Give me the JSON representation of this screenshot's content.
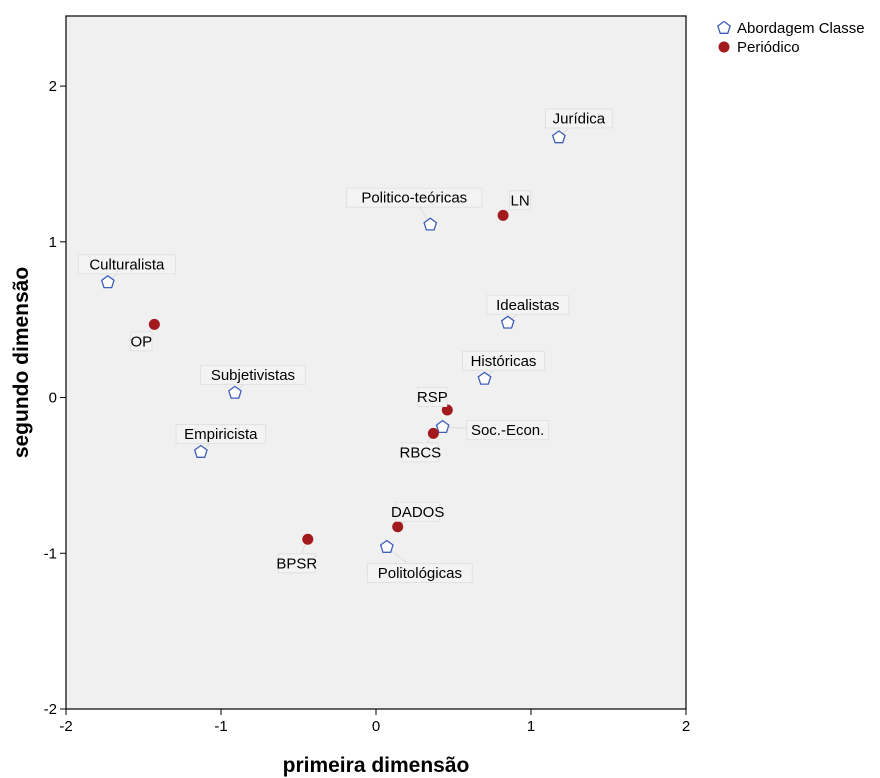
{
  "chart_data": {
    "type": "scatter",
    "xlabel": "primeira dimensão",
    "ylabel": "segundo dimensão",
    "xlim": [
      -2,
      2
    ],
    "ylim": [
      -2,
      2.45
    ],
    "xticks": [
      "-2",
      "-1",
      "0",
      "1",
      "2"
    ],
    "yticks": [
      "-2",
      "-1",
      "0",
      "1",
      "2"
    ],
    "legend_position": "top-right",
    "grid": false,
    "colors": {
      "background": "#f0f0f0",
      "abordagem": "#3f5fb8",
      "periodico": "#a31a1e"
    },
    "series": [
      {
        "name": "Abordagem Classe",
        "marker": "pentagon",
        "points": [
          {
            "label": "Jurídica",
            "x": 1.18,
            "y": 1.67
          },
          {
            "label": "Politico-teóricas",
            "x": 0.35,
            "y": 1.11
          },
          {
            "label": "Culturalista",
            "x": -1.73,
            "y": 0.74
          },
          {
            "label": "Idealistas",
            "x": 0.85,
            "y": 0.48
          },
          {
            "label": "Históricas",
            "x": 0.7,
            "y": 0.12
          },
          {
            "label": "Subjetivistas",
            "x": -0.91,
            "y": 0.03
          },
          {
            "label": "Soc.-Econ.",
            "x": 0.43,
            "y": -0.19
          },
          {
            "label": "Empiricista",
            "x": -1.13,
            "y": -0.35
          },
          {
            "label": "Politológicas",
            "x": 0.07,
            "y": -0.96
          }
        ]
      },
      {
        "name": "Periódico",
        "marker": "circle",
        "points": [
          {
            "label": "LN",
            "x": 0.82,
            "y": 1.17
          },
          {
            "label": "OP",
            "x": -1.43,
            "y": 0.47
          },
          {
            "label": "RSP",
            "x": 0.46,
            "y": -0.08
          },
          {
            "label": "RBCS",
            "x": 0.37,
            "y": -0.23
          },
          {
            "label": "DADOS",
            "x": 0.14,
            "y": -0.83
          },
          {
            "label": "BPSR",
            "x": -0.44,
            "y": -0.91
          }
        ]
      }
    ]
  }
}
